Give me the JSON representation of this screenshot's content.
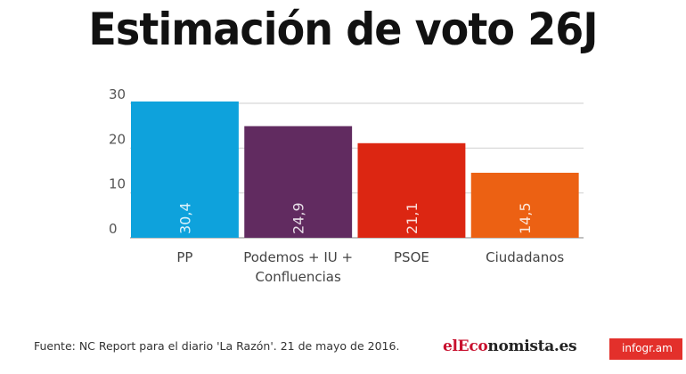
{
  "header": {
    "title": "Estimación de voto 26J"
  },
  "chart_data": {
    "type": "bar",
    "categories": [
      [
        "PP"
      ],
      [
        "Podemos + IU +",
        "Confluencias"
      ],
      [
        "PSOE"
      ],
      [
        "Ciudadanos"
      ]
    ],
    "values": [
      30.4,
      24.9,
      21.1,
      14.5
    ],
    "value_labels": [
      "30,4",
      "24,9",
      "21,1",
      "14,5"
    ],
    "colors": [
      "#0ea2dc",
      "#612b60",
      "#dc2612",
      "#ec6113"
    ],
    "yticks": [
      0,
      10,
      20,
      30
    ],
    "ylim": [
      0,
      30
    ],
    "grid": true
  },
  "footer": {
    "source": "Fuente:  NC Report para el diario 'La Razón'. 21 de mayo de 2016.",
    "logo_part1": "elEco",
    "logo_part2": "nomista.es",
    "brand": "infogr.am",
    "brand_color": "#e3302b"
  }
}
